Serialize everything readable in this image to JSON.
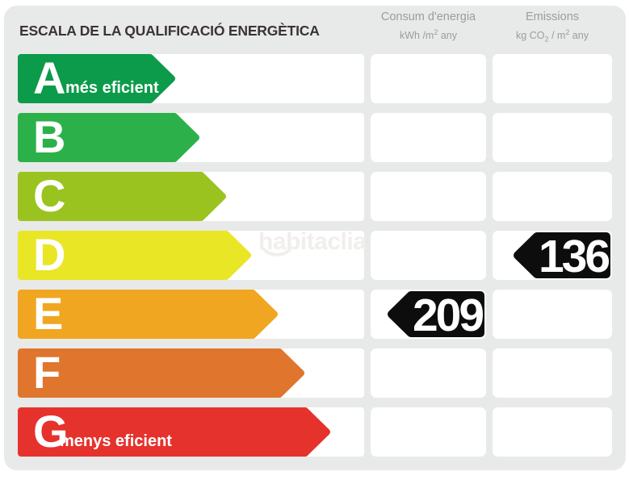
{
  "title": "ESCALA DE LA QUALIFICACIÓ ENERGÈTICA",
  "watermark": "habitaclia",
  "columns": {
    "consum": {
      "title": "Consum d'energia",
      "unit": {
        "pre": "kWh /m",
        "sup": "2",
        "post": " any"
      }
    },
    "emissions": {
      "title": "Emissions",
      "unit": {
        "pre": "kg CO",
        "sub": "2",
        "mid": " / m",
        "sup": "2",
        "post": " any"
      }
    }
  },
  "scale": {
    "rows": [
      {
        "letter": "A",
        "tag": "més eficient",
        "color": "#0c9b4a",
        "arrow_width": 196,
        "consum": null,
        "emissions": null
      },
      {
        "letter": "B",
        "tag": null,
        "color": "#2cb14a",
        "arrow_width": 226,
        "consum": null,
        "emissions": null
      },
      {
        "letter": "C",
        "tag": null,
        "color": "#9ac31f",
        "arrow_width": 259,
        "consum": null,
        "emissions": null
      },
      {
        "letter": "D",
        "tag": null,
        "color": "#e9e626",
        "arrow_width": 290,
        "consum": null,
        "emissions": "136"
      },
      {
        "letter": "E",
        "tag": null,
        "color": "#f0a620",
        "arrow_width": 323,
        "consum": "209",
        "emissions": null
      },
      {
        "letter": "F",
        "tag": null,
        "color": "#e0752d",
        "arrow_width": 356,
        "consum": null,
        "emissions": null
      },
      {
        "letter": "G",
        "tag": "menys eficient",
        "color": "#e6322c",
        "arrow_width": 388,
        "consum": null,
        "emissions": null
      }
    ]
  },
  "colors": {
    "card_bg": "#e8e9e9",
    "cell_bg": "#ffffff",
    "title": "#3a3533",
    "header_text": "#9c9c9c",
    "badge_bg": "#0d0d0d",
    "badge_text": "#ffffff",
    "watermark": "#f0efec"
  },
  "chart_data": {
    "type": "table",
    "title": "ESCALA DE LA QUALIFICACIÓ ENERGÈTICA",
    "categories": [
      "A",
      "B",
      "C",
      "D",
      "E",
      "F",
      "G"
    ],
    "series": [
      {
        "name": "Consum d'energia (kWh/m² any)",
        "values": [
          null,
          null,
          null,
          null,
          209,
          null,
          null
        ]
      },
      {
        "name": "Emissions (kg CO₂/m² any)",
        "values": [
          null,
          null,
          null,
          136,
          null,
          null,
          null
        ]
      }
    ],
    "annotations": [
      "A = més eficient",
      "G = menys eficient",
      "Consum d'energia rating: E = 209 kWh/m² any",
      "Emissions rating: D = 136 kg CO₂/m² any"
    ],
    "row_colors": [
      "#0c9b4a",
      "#2cb14a",
      "#9ac31f",
      "#e9e626",
      "#f0a620",
      "#e0752d",
      "#e6322c"
    ],
    "legend_position": "none",
    "grid": false
  }
}
